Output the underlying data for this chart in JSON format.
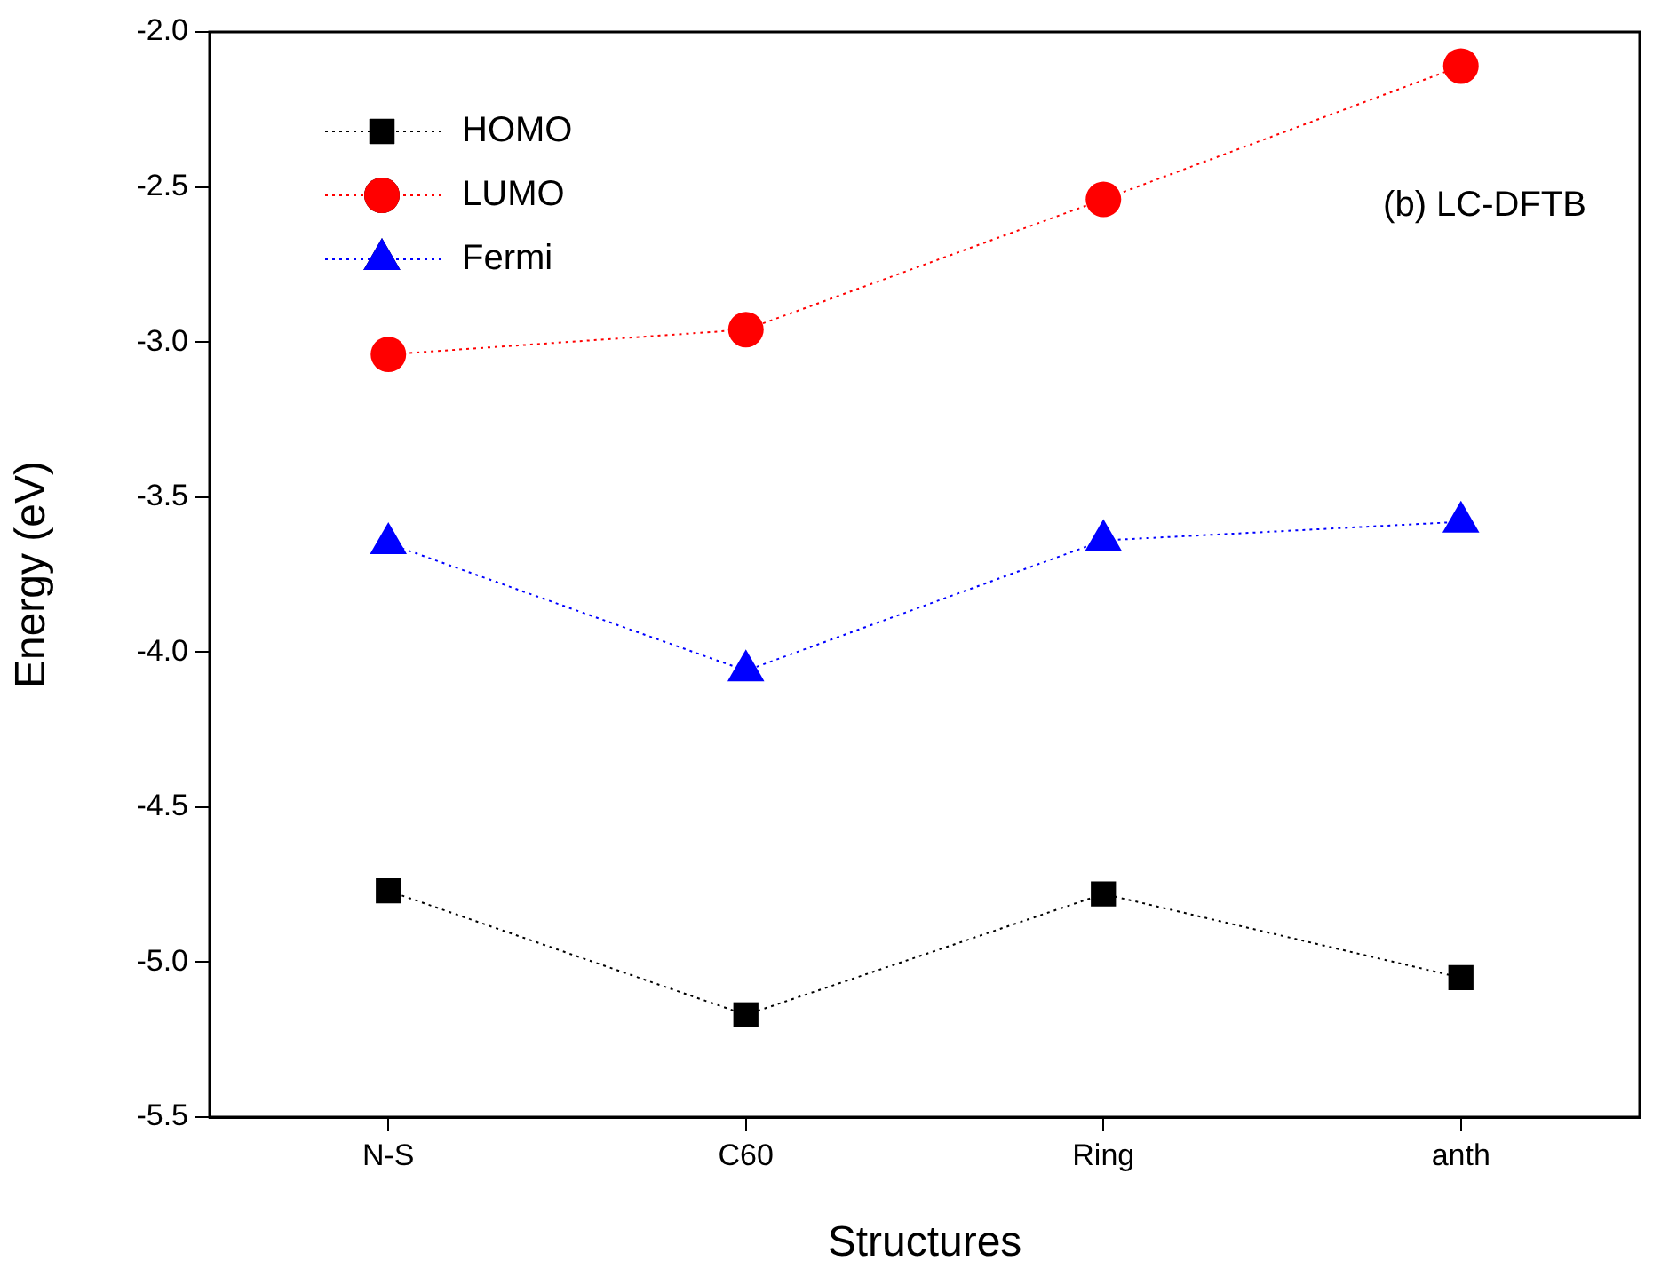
{
  "chart_data": {
    "type": "line",
    "xlabel": "Structures",
    "ylabel": "Energy (eV)",
    "categories": [
      "N-S",
      "C60",
      "Ring",
      "anth"
    ],
    "series": [
      {
        "name": "HOMO",
        "color": "#000000",
        "marker": "square",
        "values": [
          -4.77,
          -5.17,
          -4.78,
          -5.05
        ]
      },
      {
        "name": "LUMO",
        "color": "#ff0000",
        "marker": "circle",
        "values": [
          -3.04,
          -2.96,
          -2.54,
          -2.11
        ]
      },
      {
        "name": "Fermi",
        "color": "#0000ff",
        "marker": "triangle",
        "values": [
          -3.65,
          -4.06,
          -3.64,
          -3.58
        ]
      }
    ],
    "ylim": [
      -5.5,
      -2.0
    ],
    "yticks": [
      -5.5,
      {
        "value": -5,
        "label": "-5.0"
      },
      -4.5,
      {
        "value": -4,
        "label": "-4.0"
      },
      -3.5,
      {
        "value": -3,
        "label": "-3.0"
      },
      -2.5,
      {
        "value": -2,
        "label": "-2.0"
      }
    ],
    "grid": false,
    "legend": "top left",
    "line_style": "dotted",
    "annotations": [
      "(b) LC-DFTB"
    ]
  }
}
